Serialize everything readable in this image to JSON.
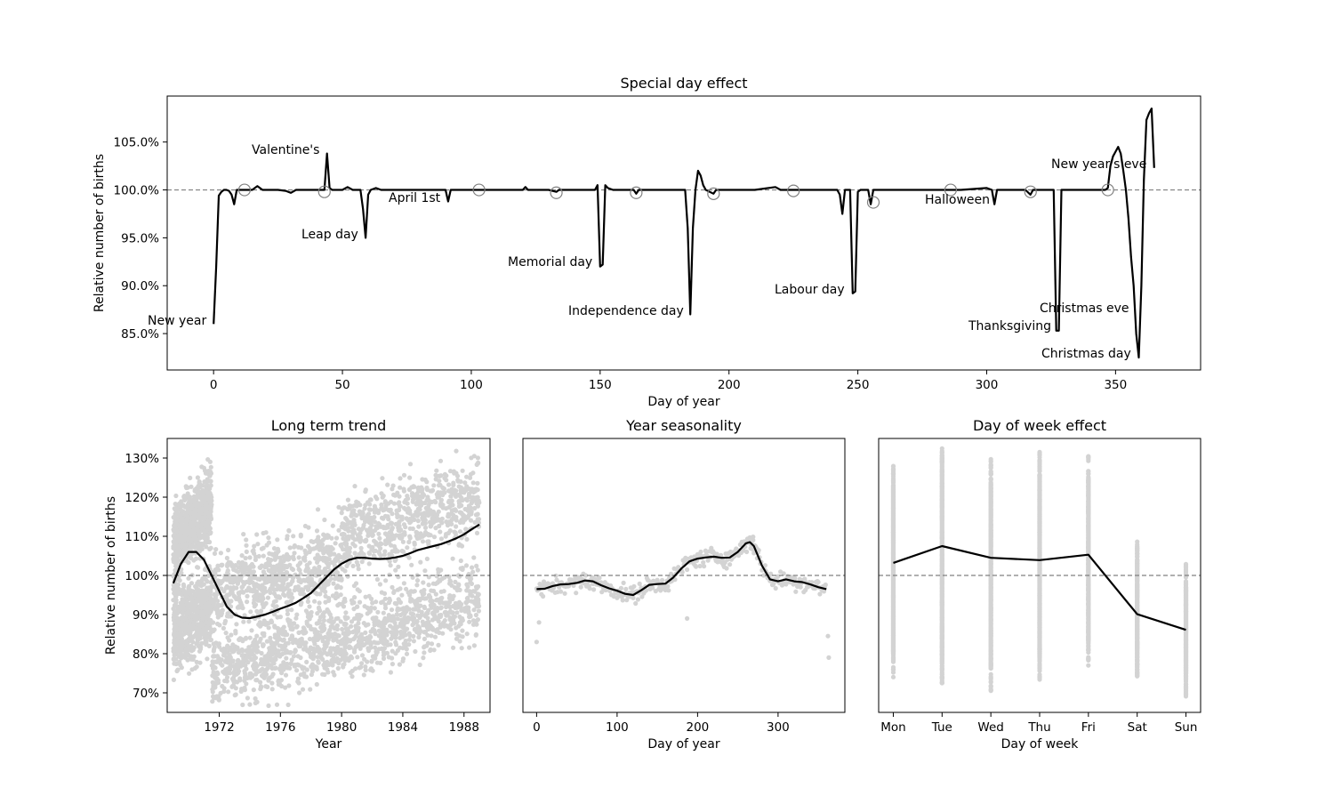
{
  "chart_data": [
    {
      "id": "special",
      "type": "line",
      "title": "Special day effect",
      "xlabel": "Day of year",
      "ylabel": "Relative number of births",
      "xlim": [
        -18,
        383
      ],
      "ylim": [
        81.2,
        109.8
      ],
      "xticks": [
        0,
        50,
        100,
        150,
        200,
        250,
        300,
        350
      ],
      "yticks": [
        85,
        90,
        95,
        100,
        105
      ],
      "ytick_labels": [
        "85.0%",
        "90.0%",
        "95.0%",
        "100.0%",
        "105.0%"
      ],
      "reference_line": 100,
      "series": [
        {
          "color": "#000000",
          "points": [
            [
              0,
              86
            ],
            [
              1,
              92
            ],
            [
              2,
              99.4
            ],
            [
              3,
              99.8
            ],
            [
              4,
              100
            ],
            [
              5,
              100
            ],
            [
              6,
              99.9
            ],
            [
              7,
              99.5
            ],
            [
              8,
              98.5
            ],
            [
              9,
              100
            ],
            [
              12,
              100
            ],
            [
              15,
              100
            ],
            [
              17,
              100.4
            ],
            [
              19,
              100
            ],
            [
              25,
              100
            ],
            [
              28,
              99.9
            ],
            [
              30,
              99.7
            ],
            [
              32,
              100
            ],
            [
              40,
              100
            ],
            [
              43,
              100
            ],
            [
              44,
              103.8
            ],
            [
              45,
              100.2
            ],
            [
              46,
              100
            ],
            [
              50,
              100
            ],
            [
              52,
              100.3
            ],
            [
              54,
              100
            ],
            [
              57,
              100
            ],
            [
              58,
              98
            ],
            [
              59,
              95
            ],
            [
              60,
              99.5
            ],
            [
              61,
              100
            ],
            [
              63,
              100.2
            ],
            [
              65,
              100
            ],
            [
              70,
              100
            ],
            [
              75,
              100
            ],
            [
              80,
              100
            ],
            [
              85,
              100
            ],
            [
              90,
              100
            ],
            [
              91,
              98.8
            ],
            [
              92,
              100
            ],
            [
              95,
              100
            ],
            [
              100,
              100
            ],
            [
              110,
              100
            ],
            [
              120,
              100
            ],
            [
              121,
              100.3
            ],
            [
              122,
              100
            ],
            [
              130,
              100
            ],
            [
              133,
              99.8
            ],
            [
              134,
              100
            ],
            [
              140,
              100
            ],
            [
              148,
              100
            ],
            [
              149,
              100.5
            ],
            [
              150,
              92
            ],
            [
              151,
              92.2
            ],
            [
              152,
              100.5
            ],
            [
              153,
              100.2
            ],
            [
              155,
              100
            ],
            [
              160,
              100
            ],
            [
              163,
              100
            ],
            [
              164,
              99.6
            ],
            [
              165,
              100
            ],
            [
              170,
              100
            ],
            [
              175,
              100
            ],
            [
              180,
              100
            ],
            [
              183,
              100
            ],
            [
              184,
              96
            ],
            [
              185,
              87
            ],
            [
              186,
              96
            ],
            [
              187,
              100
            ],
            [
              188,
              102
            ],
            [
              189,
              101.5
            ],
            [
              190,
              100.5
            ],
            [
              191,
              100
            ],
            [
              194,
              99.6
            ],
            [
              195,
              100
            ],
            [
              200,
              100
            ],
            [
              210,
              100
            ],
            [
              218,
              100.3
            ],
            [
              220,
              100
            ],
            [
              230,
              100
            ],
            [
              240,
              100
            ],
            [
              242,
              100
            ],
            [
              243,
              99.5
            ],
            [
              244,
              97.5
            ],
            [
              245,
              100
            ],
            [
              247,
              100
            ],
            [
              248,
              89.2
            ],
            [
              249,
              89.4
            ],
            [
              250,
              99.8
            ],
            [
              251,
              100
            ],
            [
              254,
              100
            ],
            [
              255,
              98.5
            ],
            [
              256,
              100
            ],
            [
              260,
              100
            ],
            [
              270,
              100
            ],
            [
              280,
              100
            ],
            [
              290,
              100
            ],
            [
              300,
              100.2
            ],
            [
              302,
              100
            ],
            [
              303,
              98.5
            ],
            [
              304,
              100
            ],
            [
              310,
              100
            ],
            [
              315,
              100
            ],
            [
              317,
              99.5
            ],
            [
              318,
              100
            ],
            [
              325,
              100
            ],
            [
              326,
              100
            ],
            [
              327,
              85.3
            ],
            [
              328,
              85.3
            ],
            [
              329,
              100
            ],
            [
              330,
              100
            ],
            [
              340,
              100
            ],
            [
              346,
              100
            ],
            [
              347,
              100.2
            ],
            [
              348,
              102.5
            ],
            [
              349,
              103.5
            ],
            [
              350,
              104
            ],
            [
              351,
              104.5
            ],
            [
              352,
              103.8
            ],
            [
              353,
              102
            ],
            [
              354,
              100
            ],
            [
              355,
              97
            ],
            [
              356,
              93
            ],
            [
              357,
              90
            ],
            [
              358,
              85
            ],
            [
              359,
              82.5
            ],
            [
              360,
              90
            ],
            [
              361,
              101
            ],
            [
              362,
              107.3
            ],
            [
              363,
              108
            ],
            [
              364,
              108.5
            ],
            [
              365,
              102.3
            ]
          ]
        }
      ],
      "markers": [
        [
          12,
          100
        ],
        [
          43,
          99.8
        ],
        [
          103,
          100
        ],
        [
          133,
          99.7
        ],
        [
          164,
          99.7
        ],
        [
          194,
          99.6
        ],
        [
          225,
          99.9
        ],
        [
          256,
          98.7
        ],
        [
          286,
          100
        ],
        [
          317,
          99.8
        ],
        [
          347,
          100
        ]
      ],
      "annotations": [
        {
          "text": "New year",
          "x": 0,
          "y": 86
        },
        {
          "text": "Valentine's",
          "x": 44,
          "y": 103.8
        },
        {
          "text": "Leap day",
          "x": 59,
          "y": 95
        },
        {
          "text": "April 1st",
          "x": 91,
          "y": 98.8
        },
        {
          "text": "Memorial day",
          "x": 150,
          "y": 92
        },
        {
          "text": "Independence day",
          "x": 185,
          "y": 87
        },
        {
          "text": "Labour day",
          "x": 248,
          "y": 89.2
        },
        {
          "text": "Halloween",
          "x": 304,
          "y": 98.5
        },
        {
          "text": "Thanksgiving",
          "x": 327,
          "y": 85.3
        },
        {
          "text": "Christmas eve",
          "x": 358,
          "y": 86.5
        },
        {
          "text": "New year's eve",
          "x": 362,
          "y": 102.3
        },
        {
          "text": "Christmas day",
          "x": 359,
          "y": 82.5
        }
      ]
    },
    {
      "id": "trend",
      "type": "scatter",
      "title": "Long term trend",
      "xlabel": "Year",
      "ylabel": "Relative number of births",
      "xlim": [
        1968.6,
        1989.7
      ],
      "ylim": [
        65,
        135
      ],
      "xticks": [
        1972,
        1976,
        1980,
        1984,
        1988
      ],
      "xtick_labels": [
        "1972",
        "1976",
        "1980",
        "1984",
        "1988"
      ],
      "yticks": [
        70,
        80,
        90,
        100,
        110,
        120,
        130
      ],
      "ytick_labels": [
        "70%",
        "80%",
        "90%",
        "100%",
        "110%",
        "120%",
        "130%"
      ],
      "reference_line": 100,
      "series": [
        {
          "color": "#000000",
          "points": [
            [
              1969,
              98
            ],
            [
              1969.5,
              103
            ],
            [
              1970,
              106
            ],
            [
              1970.5,
              106
            ],
            [
              1971,
              104
            ],
            [
              1971.5,
              100
            ],
            [
              1972,
              96
            ],
            [
              1972.5,
              92
            ],
            [
              1973,
              90
            ],
            [
              1973.5,
              89.2
            ],
            [
              1974,
              89.1
            ],
            [
              1974.5,
              89.5
            ],
            [
              1975,
              90
            ],
            [
              1975.5,
              90.7
            ],
            [
              1976,
              91.5
            ],
            [
              1976.5,
              92.2
            ],
            [
              1977,
              93
            ],
            [
              1977.5,
              94.2
            ],
            [
              1978,
              95.5
            ],
            [
              1978.5,
              97.5
            ],
            [
              1979,
              99.5
            ],
            [
              1979.5,
              101.5
            ],
            [
              1980,
              103
            ],
            [
              1980.5,
              104
            ],
            [
              1981,
              104.5
            ],
            [
              1981.5,
              104.5
            ],
            [
              1982,
              104.3
            ],
            [
              1982.5,
              104.2
            ],
            [
              1983,
              104.3
            ],
            [
              1983.5,
              104.6
            ],
            [
              1984,
              105
            ],
            [
              1984.5,
              105.7
            ],
            [
              1985,
              106.5
            ],
            [
              1985.5,
              107
            ],
            [
              1986,
              107.5
            ],
            [
              1986.5,
              108
            ],
            [
              1987,
              108.7
            ],
            [
              1987.5,
              109.5
            ],
            [
              1988,
              110.5
            ],
            [
              1988.5,
              111.8
            ],
            [
              1989,
              113
            ]
          ]
        }
      ],
      "scatter_bands": [
        {
          "x": [
            1969,
            1971.5
          ],
          "y_low": [
            86,
            92
          ],
          "y_high": [
            108,
            118
          ]
        },
        {
          "x": [
            1971.5,
            1980
          ],
          "y_low": [
            76,
            84
          ],
          "y_high": [
            96,
            104
          ]
        },
        {
          "x": [
            1980,
            1989
          ],
          "y_low": [
            84,
            94
          ],
          "y_high": [
            110,
            120
          ]
        }
      ]
    },
    {
      "id": "seasonality",
      "type": "line",
      "title": "Year seasonality",
      "xlabel": "Day of year",
      "ylabel": "",
      "xlim": [
        -17,
        383
      ],
      "ylim": [
        65,
        135
      ],
      "xticks": [
        0,
        100,
        200,
        300
      ],
      "xtick_labels": [
        "0",
        "100",
        "200",
        "300"
      ],
      "reference_line": 100,
      "series": [
        {
          "color": "#000000",
          "points": [
            [
              0,
              96.5
            ],
            [
              10,
              96.6
            ],
            [
              20,
              97.3
            ],
            [
              30,
              97.7
            ],
            [
              40,
              97.8
            ],
            [
              50,
              98.1
            ],
            [
              60,
              98.7
            ],
            [
              70,
              98.5
            ],
            [
              80,
              97.5
            ],
            [
              90,
              96.7
            ],
            [
              100,
              96.1
            ],
            [
              110,
              95.3
            ],
            [
              120,
              95
            ],
            [
              130,
              96.2
            ],
            [
              140,
              97.6
            ],
            [
              150,
              97.8
            ],
            [
              160,
              97.9
            ],
            [
              170,
              99.5
            ],
            [
              180,
              101.8
            ],
            [
              190,
              103.6
            ],
            [
              200,
              104.3
            ],
            [
              210,
              104.6
            ],
            [
              220,
              104.8
            ],
            [
              230,
              104.5
            ],
            [
              240,
              104.6
            ],
            [
              250,
              106
            ],
            [
              260,
              108.2
            ],
            [
              265,
              108.5
            ],
            [
              270,
              107.5
            ],
            [
              280,
              102.5
            ],
            [
              290,
              99
            ],
            [
              300,
              98.5
            ],
            [
              310,
              99
            ],
            [
              320,
              98.5
            ],
            [
              330,
              98.3
            ],
            [
              340,
              97.7
            ],
            [
              350,
              97
            ],
            [
              360,
              96.5
            ]
          ]
        }
      ]
    },
    {
      "id": "dow",
      "type": "line",
      "title": "Day of week effect",
      "xlabel": "Day of week",
      "ylabel": "",
      "categories": [
        "Mon",
        "Tue",
        "Wed",
        "Thu",
        "Fri",
        "Sat",
        "Sun"
      ],
      "xlim": [
        -0.3,
        6.3
      ],
      "ylim": [
        65,
        135
      ],
      "reference_line": 100,
      "values": [
        103.2,
        107.5,
        104.5,
        103.9,
        105.3,
        90.1,
        86.1
      ],
      "scatter_ranges": [
        [
          74,
          129
        ],
        [
          72,
          133
        ],
        [
          70,
          130
        ],
        [
          73,
          132
        ],
        [
          77,
          131
        ],
        [
          74,
          109
        ],
        [
          69,
          103
        ]
      ]
    }
  ]
}
